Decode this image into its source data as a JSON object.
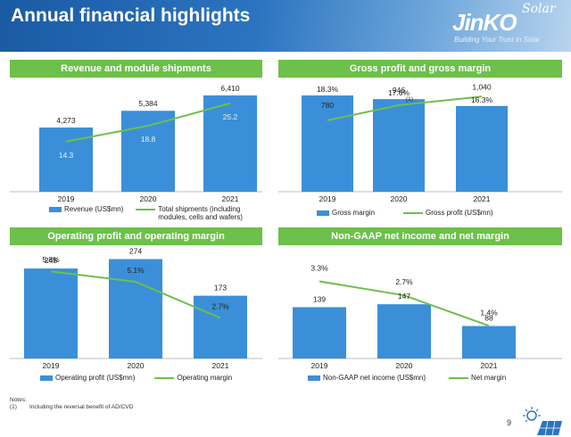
{
  "page": {
    "title": "Annual financial highlights",
    "logo": {
      "brand": "JinKO",
      "solar": "Solar",
      "tagline": "Building Your Trust in Solar"
    },
    "notes_heading": "Notes:",
    "note_1_marker": "(1)",
    "note_1_text": "Including the reversal benefit of AD/CVD",
    "page_number": "9",
    "colors": {
      "bar": "#3b8fd9",
      "line": "#6dc04a",
      "panel_header": "#6dc04a"
    }
  },
  "panels": [
    {
      "title": "Revenue and module shipments",
      "legend_bar": "Revenue (US$mn)",
      "legend_line": "Total shipments (including modules, cells and wafers)"
    },
    {
      "title": "Gross profit and gross margin",
      "legend_bar": "Gross margin",
      "legend_line": "Gross profit (US$mn)"
    },
    {
      "title": "Operating profit and operating margin",
      "legend_bar": "Operating profit (US$mn)",
      "legend_line": "Operating margin"
    },
    {
      "title": "Non-GAAP net income and net margin",
      "legend_bar": "Non-GAAP net income (US$mn)",
      "legend_line": "Net margin"
    }
  ],
  "chart_data": [
    {
      "type": "bar",
      "title": "Revenue and module shipments",
      "categories": [
        "2019",
        "2020",
        "2021"
      ],
      "series": [
        {
          "name": "Revenue (US$mn)",
          "kind": "bar",
          "values": [
            4273,
            5384,
            6410
          ],
          "labels": [
            "4,273",
            "5,384",
            "6,410"
          ]
        },
        {
          "name": "Total shipments (including modules, cells and wafers)",
          "kind": "line",
          "values": [
            14.3,
            18.8,
            25.2
          ],
          "labels": [
            "14.3",
            "18.8",
            "25.2"
          ]
        }
      ],
      "ylim_bar": [
        0,
        7000
      ],
      "ylim_line": [
        0,
        30
      ]
    },
    {
      "type": "bar",
      "title": "Gross profit and gross margin",
      "categories": [
        "2019",
        "2020",
        "2021"
      ],
      "series": [
        {
          "name": "Gross margin",
          "kind": "bar",
          "values": [
            18.3,
            17.6,
            16.3
          ],
          "labels": [
            "18.3%",
            "17.6%",
            "16.3%"
          ]
        },
        {
          "name": "Gross profit (US$mn)",
          "kind": "line",
          "values": [
            780,
            946,
            1040
          ],
          "labels": [
            "780",
            "946",
            "1,040"
          ]
        }
      ],
      "annotations": [
        {
          "category": "2020",
          "text": "(1)"
        }
      ],
      "ylim_bar": [
        0,
        20
      ],
      "ylim_line": [
        0,
        1150
      ]
    },
    {
      "type": "bar",
      "title": "Operating profit and operating margin",
      "categories": [
        "2019",
        "2020",
        "2021"
      ],
      "series": [
        {
          "name": "Operating profit (US$mn)",
          "kind": "bar",
          "values": [
            248,
            274,
            173
          ],
          "labels": [
            "248",
            "274",
            "173"
          ]
        },
        {
          "name": "Operating margin",
          "kind": "line",
          "values": [
            5.8,
            5.1,
            2.7
          ],
          "labels": [
            "5.8%",
            "5.1%",
            "2.7%"
          ]
        }
      ],
      "ylim_bar": [
        0,
        290
      ],
      "ylim_line": [
        0,
        7
      ]
    },
    {
      "type": "bar",
      "title": "Non-GAAP net income and net margin",
      "categories": [
        "2019",
        "2020",
        "2021"
      ],
      "series": [
        {
          "name": "Non-GAAP net income (US$mn)",
          "kind": "bar",
          "values": [
            139,
            147,
            88
          ],
          "labels": [
            "139",
            "147",
            "88"
          ]
        },
        {
          "name": "Net margin",
          "kind": "line",
          "values": [
            3.3,
            2.7,
            1.4
          ],
          "labels": [
            "3.3%",
            "2.7%",
            "1.4%"
          ]
        }
      ],
      "ylim_bar": [
        0,
        285
      ],
      "ylim_line": [
        0,
        4.5
      ]
    }
  ]
}
